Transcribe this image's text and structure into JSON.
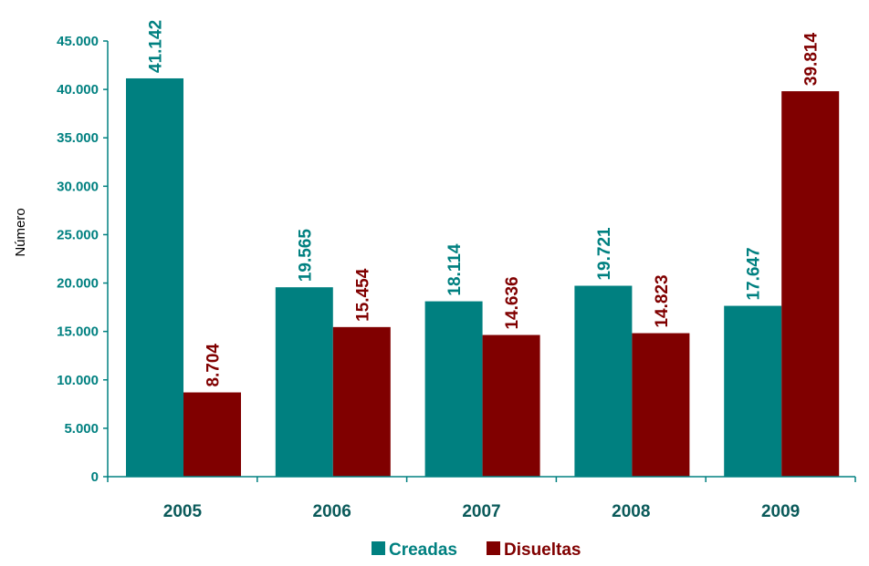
{
  "colors": {
    "axis_text": "#008080",
    "category_text": "#0a5a5a",
    "axis_line": "#008080",
    "created": "#008080",
    "dissolved": "#800000"
  },
  "chart_data": {
    "type": "bar",
    "title": "",
    "xlabel": "",
    "ylabel": "Número",
    "categories": [
      "2005",
      "2006",
      "2007",
      "2008",
      "2009"
    ],
    "ylim": [
      0,
      45000
    ],
    "yticks": [
      0,
      5000,
      10000,
      15000,
      20000,
      25000,
      30000,
      35000,
      40000,
      45000
    ],
    "ytick_labels": [
      "0",
      "5.000",
      "10.000",
      "15.000",
      "20.000",
      "25.000",
      "30.000",
      "35.000",
      "40.000",
      "45.000"
    ],
    "grid": false,
    "legend_position": "bottom",
    "series": [
      {
        "name": "Creadas",
        "color": "#008080",
        "values": [
          41142,
          19565,
          18114,
          19721,
          17647
        ],
        "labels": [
          "41.142",
          "19.565",
          "18.114",
          "19.721",
          "17.647"
        ]
      },
      {
        "name": "Disueltas",
        "color": "#800000",
        "values": [
          8704,
          15454,
          14636,
          14823,
          39814
        ],
        "labels": [
          "8.704",
          "15.454",
          "14.636",
          "14.823",
          "39.814"
        ]
      }
    ]
  }
}
